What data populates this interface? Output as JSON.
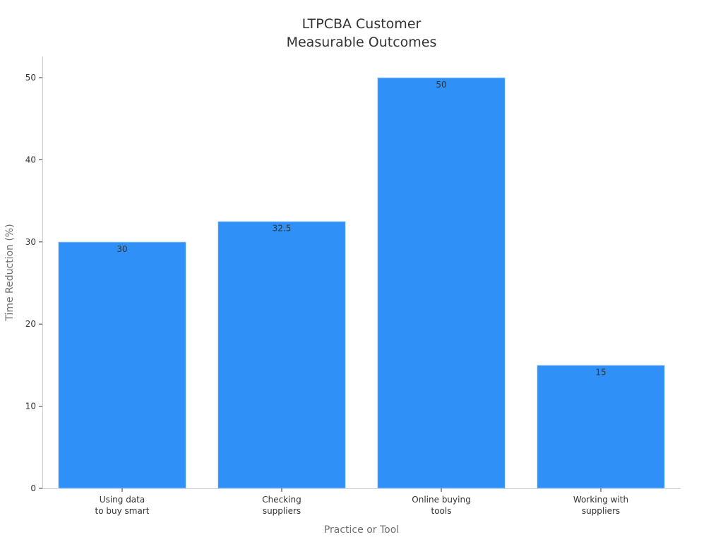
{
  "chart_data": {
    "type": "bar",
    "title": [
      "LTPCBA Customer",
      "Measurable Outcomes"
    ],
    "xlabel": "Practice or Tool",
    "ylabel": "Time Reduction (%)",
    "categories": [
      [
        "Using data",
        "to buy smart"
      ],
      [
        "Checking",
        "suppliers"
      ],
      [
        "Online buying",
        "tools"
      ],
      [
        "Working with",
        "suppliers"
      ]
    ],
    "values": [
      30,
      32.5,
      50,
      15
    ],
    "value_labels": [
      "30",
      "32.5",
      "50",
      "15"
    ],
    "ylim": [
      0,
      52.5
    ],
    "yticks": [
      0,
      10,
      20,
      30,
      40,
      50
    ],
    "grid": false,
    "bar_color": "#2f91f8"
  }
}
